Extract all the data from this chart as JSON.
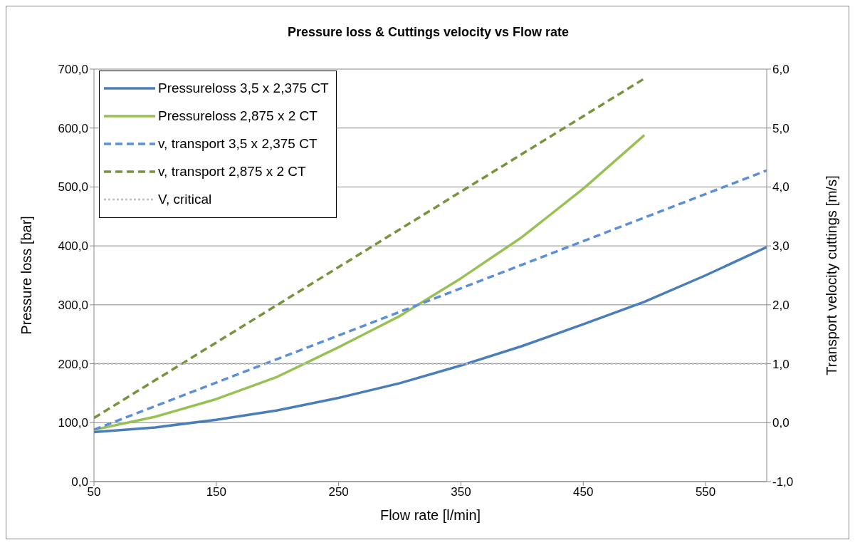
{
  "chart_data": {
    "type": "line",
    "title": "Pressure loss & Cuttings velocity vs Flow rate",
    "xlabel": "Flow rate [l/min]",
    "ylabel": "Pressure loss [bar]",
    "y2label": "Transport velocity cuttings [m/s]",
    "xlim": [
      50,
      600
    ],
    "xticks": [
      50,
      150,
      250,
      350,
      450,
      550
    ],
    "ylim": [
      0,
      700
    ],
    "yticks": [
      {
        "value": 0,
        "label": "0,0"
      },
      {
        "value": 100,
        "label": "100,0"
      },
      {
        "value": 200,
        "label": "200,0"
      },
      {
        "value": 300,
        "label": "300,0"
      },
      {
        "value": 400,
        "label": "400,0"
      },
      {
        "value": 500,
        "label": "500,0"
      },
      {
        "value": 600,
        "label": "600,0"
      },
      {
        "value": 700,
        "label": "700,0"
      }
    ],
    "y2lim": [
      -1,
      6
    ],
    "y2ticks": [
      {
        "value": -1,
        "label": "-1,0"
      },
      {
        "value": 0,
        "label": "0,0"
      },
      {
        "value": 1,
        "label": "1,0"
      },
      {
        "value": 2,
        "label": "2,0"
      },
      {
        "value": 3,
        "label": "3,0"
      },
      {
        "value": 4,
        "label": "4,0"
      },
      {
        "value": 5,
        "label": "5,0"
      },
      {
        "value": 6,
        "label": "6,0"
      }
    ],
    "grid": "y",
    "legend": "top left",
    "marker": "none",
    "series": [
      {
        "name": "Pressureloss 3,5 x 2,375 CT",
        "color": "#4a7ebb",
        "line_style": "solid",
        "x": [
          50,
          100,
          150,
          200,
          250,
          300,
          350,
          400,
          450,
          500,
          550,
          600
        ],
        "values": [
          84,
          92,
          105,
          121,
          142,
          167,
          197,
          230,
          267,
          305,
          350,
          398
        ]
      },
      {
        "name": "Pressureloss 2,875 x 2 CT",
        "color": "#98c155",
        "line_style": "solid",
        "x": [
          50,
          100,
          150,
          200,
          250,
          300,
          350,
          400,
          450,
          500
        ],
        "values": [
          88,
          110,
          140,
          178,
          228,
          281,
          345,
          415,
          497,
          588
        ]
      },
      {
        "name": "v, transport 3,5 x 2,375 CT",
        "color": "#5b8fd8",
        "line_style": "dashed",
        "axis": "y2",
        "x": [
          50,
          325,
          600
        ],
        "values": [
          -0.12,
          2.08,
          4.28
        ]
      },
      {
        "name": "v, transport 2,875 x 2 CT",
        "color": "#77933c",
        "line_style": "dashed",
        "axis": "y2",
        "x": [
          50,
          275,
          500
        ],
        "values": [
          0.08,
          2.96,
          5.84
        ]
      },
      {
        "name": "V, critical",
        "color": "#bfbfbf",
        "line_style": "dotted",
        "axis": "y2",
        "x": [
          50,
          600
        ],
        "values": [
          1,
          1
        ]
      }
    ]
  }
}
